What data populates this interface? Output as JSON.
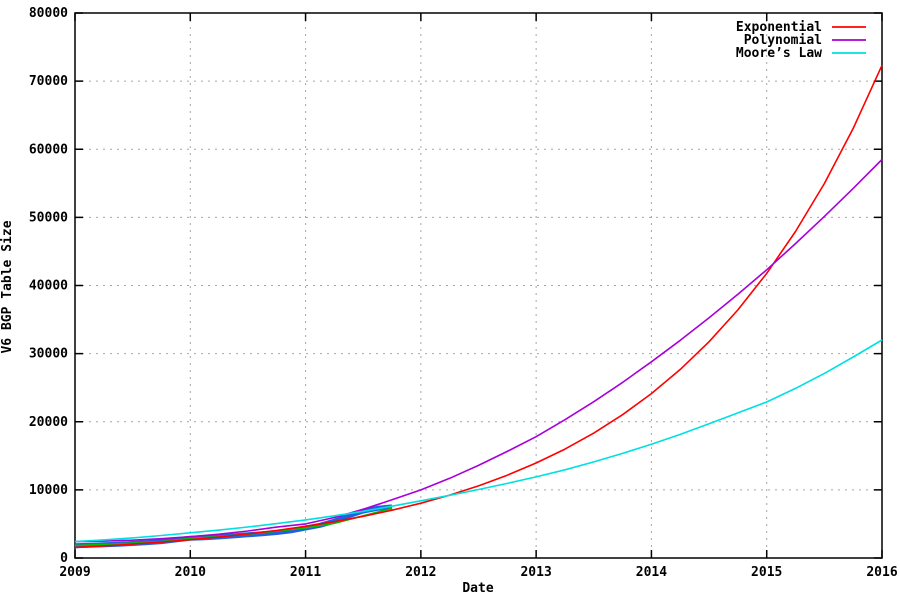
{
  "chart_data": {
    "type": "line",
    "title": "",
    "xlabel": "Date",
    "ylabel": "V6 BGP Table Size",
    "x_axis": {
      "min": 2009,
      "max": 2016,
      "tick_values": [
        2009,
        2010,
        2011,
        2012,
        2013,
        2014,
        2015,
        2016
      ],
      "tick_labels": [
        "2009",
        "2010",
        "2011",
        "2012",
        "2013",
        "2014",
        "2015",
        "2016"
      ]
    },
    "y_axis": {
      "min": 0,
      "max": 80000,
      "tick_values": [
        0,
        10000,
        20000,
        30000,
        40000,
        50000,
        60000,
        70000,
        80000
      ],
      "tick_labels": [
        "0",
        "10000",
        "20000",
        "30000",
        "40000",
        "50000",
        "60000",
        "70000",
        "80000"
      ]
    },
    "grid": {
      "show": true,
      "color": "#a6a6a6",
      "dash": "2,5"
    },
    "frame_color": "#000000",
    "legend": {
      "position": "top-right",
      "entries": [
        {
          "label": "Exponential",
          "color": "#ff0000"
        },
        {
          "label": "Polynomial",
          "color": "#a800d8"
        },
        {
          "label": "Moore’s Law",
          "color": "#00e0e0"
        }
      ]
    },
    "series": [
      {
        "name": "v6-bgp-measured-data",
        "color": "#2060e0",
        "width": 5,
        "start": 2009,
        "step": 0.125,
        "values": [
          1800,
          1860,
          1950,
          2030,
          2130,
          2260,
          2400,
          2650,
          2900,
          2980,
          3100,
          3250,
          3400,
          3550,
          3750,
          4000,
          4400,
          4800,
          5400,
          6200,
          6900,
          7300,
          7500
        ]
      },
      {
        "name": "data-trend",
        "color": "#00c000",
        "width": 1.6,
        "start": 2009,
        "step": 0.25,
        "values": [
          1850,
          2000,
          2180,
          2420,
          2880,
          3150,
          3500,
          3950,
          4420,
          5100,
          6200,
          7300
        ]
      },
      {
        "name": "exponential-fit",
        "color": "#ff0000",
        "width": 1.6,
        "start": 2009,
        "step": 0.25,
        "values": [
          1550,
          1780,
          2040,
          2340,
          2680,
          3080,
          3530,
          4050,
          4650,
          5330,
          6120,
          7020,
          8050,
          9230,
          10590,
          12150,
          13940,
          15990,
          18340,
          21030,
          24130,
          27680,
          31750,
          36420,
          41780,
          47920,
          54970,
          63060,
          72330
        ]
      },
      {
        "name": "polynomial-fit",
        "color": "#a800d8",
        "width": 1.6,
        "start": 2009,
        "step": 0.25,
        "values": [
          2400,
          2480,
          2620,
          2830,
          3120,
          3500,
          3970,
          4540,
          5000,
          5950,
          7150,
          8550,
          10000,
          11700,
          13600,
          15650,
          17800,
          20300,
          22950,
          25780,
          28800,
          31950,
          35280,
          38730,
          42300,
          46150,
          50150,
          54250,
          58500
        ]
      },
      {
        "name": "moores-law-fit",
        "color": "#00e0e0",
        "width": 1.6,
        "start": 2009,
        "step": 0.25,
        "values": [
          2400,
          2650,
          2950,
          3300,
          3700,
          4100,
          4550,
          5050,
          5600,
          6200,
          6850,
          7600,
          8400,
          9200,
          10050,
          10950,
          11900,
          12950,
          14100,
          15350,
          16700,
          18150,
          19700,
          21300,
          22900,
          24900,
          27100,
          29500,
          32000
        ]
      }
    ]
  }
}
